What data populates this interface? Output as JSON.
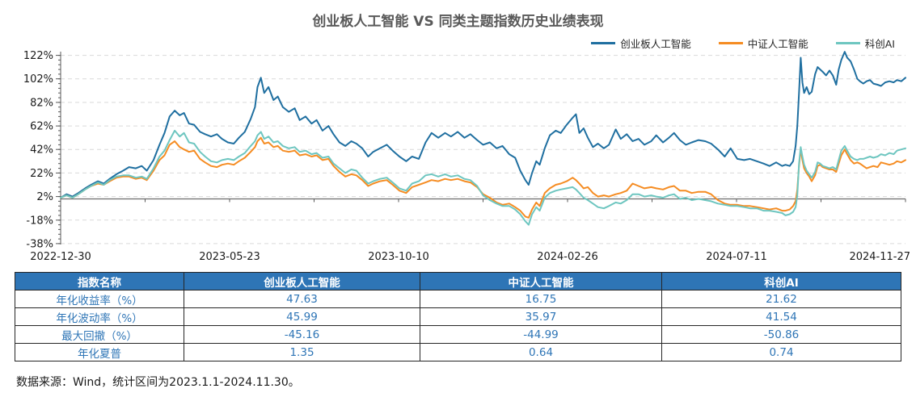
{
  "footer": "数据来源：Wind，统计区间为2023.1.1-2024.11.30。",
  "chart_data": {
    "type": "line",
    "title": "创业板人工智能 VS 同类主题指数历史业绩表现",
    "y_unit": "%",
    "grid": "horizontal-dashed",
    "legend_position": "top-right",
    "y_axis": {
      "min": -38,
      "max": 122,
      "major_step": 20,
      "minor_step": 4,
      "ticks": [
        {
          "value": 122,
          "label": "122%"
        },
        {
          "value": 102,
          "label": "102%"
        },
        {
          "value": 82,
          "label": "82%"
        },
        {
          "value": 62,
          "label": "62%"
        },
        {
          "value": 42,
          "label": "42%"
        },
        {
          "value": 22,
          "label": "22%"
        },
        {
          "value": 2,
          "label": "2%"
        },
        {
          "value": -18,
          "label": "-18%"
        },
        {
          "value": -38,
          "label": "-38%"
        }
      ]
    },
    "x_axis": {
      "ticks": [
        {
          "pos": 0.0,
          "label": "2022-12-30"
        },
        {
          "pos": 0.2,
          "label": "2023-05-23"
        },
        {
          "pos": 0.4,
          "label": "2023-10-10"
        },
        {
          "pos": 0.6,
          "label": "2024-02-26"
        },
        {
          "pos": 0.8,
          "label": "2024-07-11"
        },
        {
          "pos": 1.0,
          "label": "2024-11-27"
        }
      ]
    },
    "x": [
      0.0,
      0.007,
      0.014,
      0.021,
      0.029,
      0.036,
      0.044,
      0.051,
      0.058,
      0.066,
      0.074,
      0.081,
      0.089,
      0.096,
      0.102,
      0.11,
      0.117,
      0.123,
      0.129,
      0.135,
      0.141,
      0.146,
      0.152,
      0.158,
      0.165,
      0.171,
      0.178,
      0.185,
      0.191,
      0.198,
      0.205,
      0.211,
      0.218,
      0.225,
      0.23,
      0.233,
      0.237,
      0.241,
      0.246,
      0.252,
      0.257,
      0.263,
      0.27,
      0.277,
      0.283,
      0.29,
      0.297,
      0.303,
      0.31,
      0.317,
      0.323,
      0.33,
      0.337,
      0.344,
      0.35,
      0.357,
      0.364,
      0.37,
      0.378,
      0.386,
      0.393,
      0.401,
      0.409,
      0.416,
      0.424,
      0.432,
      0.439,
      0.447,
      0.455,
      0.462,
      0.47,
      0.478,
      0.485,
      0.493,
      0.5,
      0.508,
      0.516,
      0.523,
      0.531,
      0.538,
      0.544,
      0.55,
      0.554,
      0.558,
      0.563,
      0.567,
      0.573,
      0.579,
      0.586,
      0.592,
      0.599,
      0.606,
      0.61,
      0.614,
      0.619,
      0.624,
      0.63,
      0.636,
      0.643,
      0.649,
      0.657,
      0.663,
      0.67,
      0.677,
      0.684,
      0.691,
      0.699,
      0.705,
      0.713,
      0.72,
      0.726,
      0.733,
      0.74,
      0.747,
      0.755,
      0.763,
      0.77,
      0.778,
      0.786,
      0.793,
      0.801,
      0.809,
      0.816,
      0.824,
      0.832,
      0.839,
      0.847,
      0.854,
      0.858,
      0.863,
      0.867,
      0.87,
      0.872,
      0.874,
      0.876,
      0.878,
      0.88,
      0.883,
      0.886,
      0.889,
      0.893,
      0.896,
      0.899,
      0.902,
      0.906,
      0.91,
      0.914,
      0.918,
      0.921,
      0.924,
      0.928,
      0.931,
      0.935,
      0.939,
      0.943,
      0.946,
      0.95,
      0.954,
      0.958,
      0.962,
      0.967,
      0.971,
      0.976,
      0.981,
      0.986,
      0.99,
      0.995,
      1.0
    ],
    "series": [
      {
        "name": "创业板人工智能",
        "color": "#1F6FA0",
        "values": [
          1,
          4,
          2,
          5,
          9,
          12,
          15,
          13,
          17,
          21,
          24,
          27,
          26,
          28,
          24,
          33,
          46,
          56,
          70,
          75,
          71,
          73,
          64,
          63,
          57,
          55,
          53,
          55,
          51,
          48,
          47,
          52,
          57,
          68,
          78,
          95,
          103,
          90,
          95,
          84,
          87,
          78,
          74,
          77,
          67,
          70,
          64,
          67,
          58,
          62,
          55,
          48,
          45,
          49,
          47,
          43,
          36,
          40,
          43,
          46,
          41,
          36,
          32,
          36,
          34,
          48,
          56,
          52,
          56,
          53,
          57,
          52,
          55,
          50,
          46,
          48,
          43,
          45,
          38,
          35,
          24,
          16,
          12,
          22,
          32,
          29,
          43,
          54,
          58,
          56,
          63,
          69,
          72,
          56,
          60,
          52,
          44,
          47,
          43,
          46,
          59,
          51,
          55,
          49,
          51,
          46,
          49,
          54,
          48,
          52,
          56,
          50,
          46,
          48,
          50,
          49,
          47,
          42,
          36,
          43,
          34,
          33,
          34,
          32,
          30,
          28,
          31,
          28,
          29,
          28,
          32,
          45,
          62,
          90,
          120,
          99,
          90,
          95,
          89,
          91,
          106,
          112,
          110,
          108,
          105,
          109,
          105,
          97,
          110,
          118,
          125,
          120,
          117,
          110,
          102,
          100,
          98,
          100,
          101,
          98,
          97,
          96,
          99,
          100,
          99,
          101,
          100,
          103
        ]
      },
      {
        "name": "中证人工智能",
        "color": "#F58C22",
        "values": [
          1,
          3,
          1,
          4,
          8,
          11,
          13,
          12,
          15,
          18,
          19,
          19,
          17,
          18,
          16,
          24,
          33,
          37,
          46,
          49,
          44,
          42,
          40,
          41,
          34,
          31,
          28,
          27,
          29,
          30,
          29,
          32,
          35,
          40,
          44,
          49,
          52,
          47,
          48,
          44,
          45,
          41,
          40,
          41,
          37,
          38,
          36,
          37,
          33,
          34,
          28,
          23,
          19,
          21,
          20,
          16,
          11,
          13,
          15,
          16,
          12,
          7,
          5,
          10,
          12,
          14,
          16,
          15,
          17,
          16,
          17,
          15,
          14,
          10,
          4,
          1,
          -3,
          -5,
          -4,
          -7,
          -10,
          -15,
          -16,
          -9,
          -3,
          -6,
          5,
          9,
          12,
          13,
          15,
          18,
          16,
          13,
          9,
          10,
          5,
          2,
          3,
          2,
          4,
          5,
          7,
          13,
          11,
          9,
          10,
          9,
          8,
          10,
          11,
          7,
          7,
          5,
          6,
          6,
          4,
          -1,
          -4,
          -5,
          -5,
          -6,
          -6,
          -7,
          -8,
          -9,
          -8,
          -10,
          -10,
          -9,
          -6,
          -2,
          8,
          28,
          42,
          33,
          26,
          22,
          19,
          15,
          20,
          28,
          29,
          27,
          26,
          25,
          25,
          23,
          30,
          37,
          42,
          38,
          33,
          30,
          31,
          30,
          28,
          26,
          27,
          28,
          27,
          31,
          30,
          29,
          30,
          32,
          31,
          33
        ]
      },
      {
        "name": "科创AI",
        "color": "#6EC6C0",
        "values": [
          1,
          3,
          1,
          4,
          8,
          11,
          14,
          12,
          16,
          19,
          20,
          20,
          18,
          19,
          17,
          26,
          36,
          41,
          50,
          58,
          53,
          56,
          48,
          47,
          40,
          36,
          32,
          31,
          33,
          34,
          33,
          36,
          39,
          45,
          49,
          54,
          57,
          51,
          53,
          48,
          49,
          45,
          43,
          44,
          40,
          41,
          38,
          39,
          35,
          36,
          30,
          26,
          22,
          25,
          24,
          18,
          13,
          15,
          17,
          18,
          14,
          9,
          7,
          13,
          15,
          20,
          21,
          19,
          21,
          19,
          20,
          17,
          16,
          11,
          3,
          -1,
          -4,
          -6,
          -6,
          -9,
          -13,
          -19,
          -22,
          -13,
          -7,
          -10,
          1,
          5,
          7,
          8,
          9,
          10,
          8,
          5,
          1,
          -1,
          -4,
          -7,
          -8,
          -6,
          -3,
          -4,
          -1,
          4,
          4,
          2,
          3,
          2,
          1,
          3,
          4,
          0,
          1,
          -1,
          0,
          -1,
          -2,
          -4,
          -5,
          -6,
          -6,
          -7,
          -8,
          -8,
          -10,
          -10,
          -11,
          -12,
          -14,
          -13,
          -11,
          -7,
          3,
          30,
          44,
          36,
          29,
          24,
          21,
          18,
          23,
          31,
          30,
          28,
          27,
          26,
          27,
          25,
          33,
          41,
          45,
          41,
          36,
          34,
          33,
          34,
          34,
          35,
          36,
          35,
          36,
          38,
          37,
          39,
          38,
          41,
          42,
          43
        ]
      }
    ]
  },
  "table": {
    "header_bg": "#2E75B6",
    "text_color": "#2E75B6",
    "header": [
      "指数名称",
      "创业板人工智能",
      "中证人工智能",
      "科创AI"
    ],
    "rows": [
      {
        "label": "年化收益率（%）",
        "values": [
          "47.63",
          "16.75",
          "21.62"
        ]
      },
      {
        "label": "年化波动率（%）",
        "values": [
          "45.99",
          "35.97",
          "41.54"
        ]
      },
      {
        "label": "最大回撤（%）",
        "values": [
          "-45.16",
          "-44.99",
          "-50.86"
        ]
      },
      {
        "label": "年化夏普",
        "values": [
          "1.35",
          "0.64",
          "0.74"
        ]
      }
    ]
  }
}
